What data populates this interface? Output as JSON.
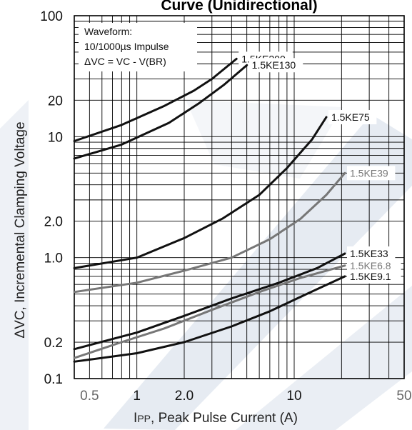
{
  "chart_data": {
    "type": "line",
    "title": "Curve (Unidirectional)",
    "xlabel_main": "I",
    "xlabel_sub": "PP",
    "xlabel_rest": ", Peak Pulse Current (A)",
    "ylabel": "ΔVC, Incremental Clamping Voltage",
    "x_scale": "log",
    "y_scale": "log",
    "xlim": [
      0.4,
      50
    ],
    "ylim": [
      0.1,
      100
    ],
    "grid": true,
    "x_ticks": [
      {
        "value": 0.5,
        "label": "0.5"
      },
      {
        "value": 1,
        "label": "1"
      },
      {
        "value": 2,
        "label": "2.0"
      },
      {
        "value": 10,
        "label": "10"
      },
      {
        "value": 50,
        "label": "50"
      }
    ],
    "y_ticks": [
      {
        "value": 0.1,
        "label": "0.1"
      },
      {
        "value": 0.2,
        "label": "0.2"
      },
      {
        "value": 1,
        "label": "1.0"
      },
      {
        "value": 2,
        "label": "2.0"
      },
      {
        "value": 10,
        "label": "10"
      },
      {
        "value": 20,
        "label": "20"
      },
      {
        "value": 100,
        "label": "100"
      }
    ],
    "annotation_lines": [
      "Waveform:",
      "10/1000µs Impulse",
      "ΔVC = VC - V(BR)"
    ],
    "series": [
      {
        "name": "1.5KE200",
        "color": "#111111",
        "points": [
          [
            0.4,
            9.2
          ],
          [
            0.8,
            12.5
          ],
          [
            1.5,
            18.0
          ],
          [
            2.3,
            24.0
          ],
          [
            3.0,
            30.0
          ],
          [
            4.3,
            44.0
          ]
        ]
      },
      {
        "name": "1.5KE130",
        "color": "#111111",
        "points": [
          [
            0.4,
            6.6
          ],
          [
            0.8,
            8.6
          ],
          [
            1.6,
            13.0
          ],
          [
            2.5,
            19.0
          ],
          [
            3.6,
            27.0
          ],
          [
            5.0,
            39.0
          ]
        ]
      },
      {
        "name": "1.5KE75",
        "color": "#111111",
        "points": [
          [
            0.4,
            0.82
          ],
          [
            1.0,
            1.0
          ],
          [
            2.0,
            1.45
          ],
          [
            3.5,
            2.1
          ],
          [
            6.0,
            3.3
          ],
          [
            9.0,
            5.5
          ],
          [
            13.0,
            9.5
          ],
          [
            16.0,
            14.5
          ]
        ]
      },
      {
        "name": "1.5KE39",
        "color": "#777777",
        "points": [
          [
            0.4,
            0.52
          ],
          [
            1.0,
            0.62
          ],
          [
            2.0,
            0.78
          ],
          [
            4.0,
            1.0
          ],
          [
            7.0,
            1.42
          ],
          [
            11.0,
            2.1
          ],
          [
            16.0,
            3.3
          ],
          [
            21.0,
            5.0
          ]
        ]
      },
      {
        "name": "1.5KE33",
        "color": "#111111",
        "points": [
          [
            0.4,
            0.175
          ],
          [
            1.0,
            0.24
          ],
          [
            2.0,
            0.33
          ],
          [
            4.0,
            0.46
          ],
          [
            8.0,
            0.62
          ],
          [
            14.0,
            0.82
          ],
          [
            21.0,
            1.08
          ]
        ]
      },
      {
        "name": "1.5KE6.8",
        "color": "#777777",
        "points": [
          [
            0.4,
            0.148
          ],
          [
            0.8,
            0.2
          ],
          [
            1.5,
            0.26
          ],
          [
            3.0,
            0.37
          ],
          [
            6.0,
            0.52
          ],
          [
            11.0,
            0.68
          ],
          [
            21.0,
            0.86
          ]
        ]
      },
      {
        "name": "1.5KE9.1",
        "color": "#111111",
        "points": [
          [
            0.4,
            0.138
          ],
          [
            1.0,
            0.162
          ],
          [
            2.0,
            0.2
          ],
          [
            4.0,
            0.27
          ],
          [
            7.0,
            0.36
          ],
          [
            12.0,
            0.5
          ],
          [
            21.0,
            0.7
          ]
        ]
      }
    ]
  }
}
